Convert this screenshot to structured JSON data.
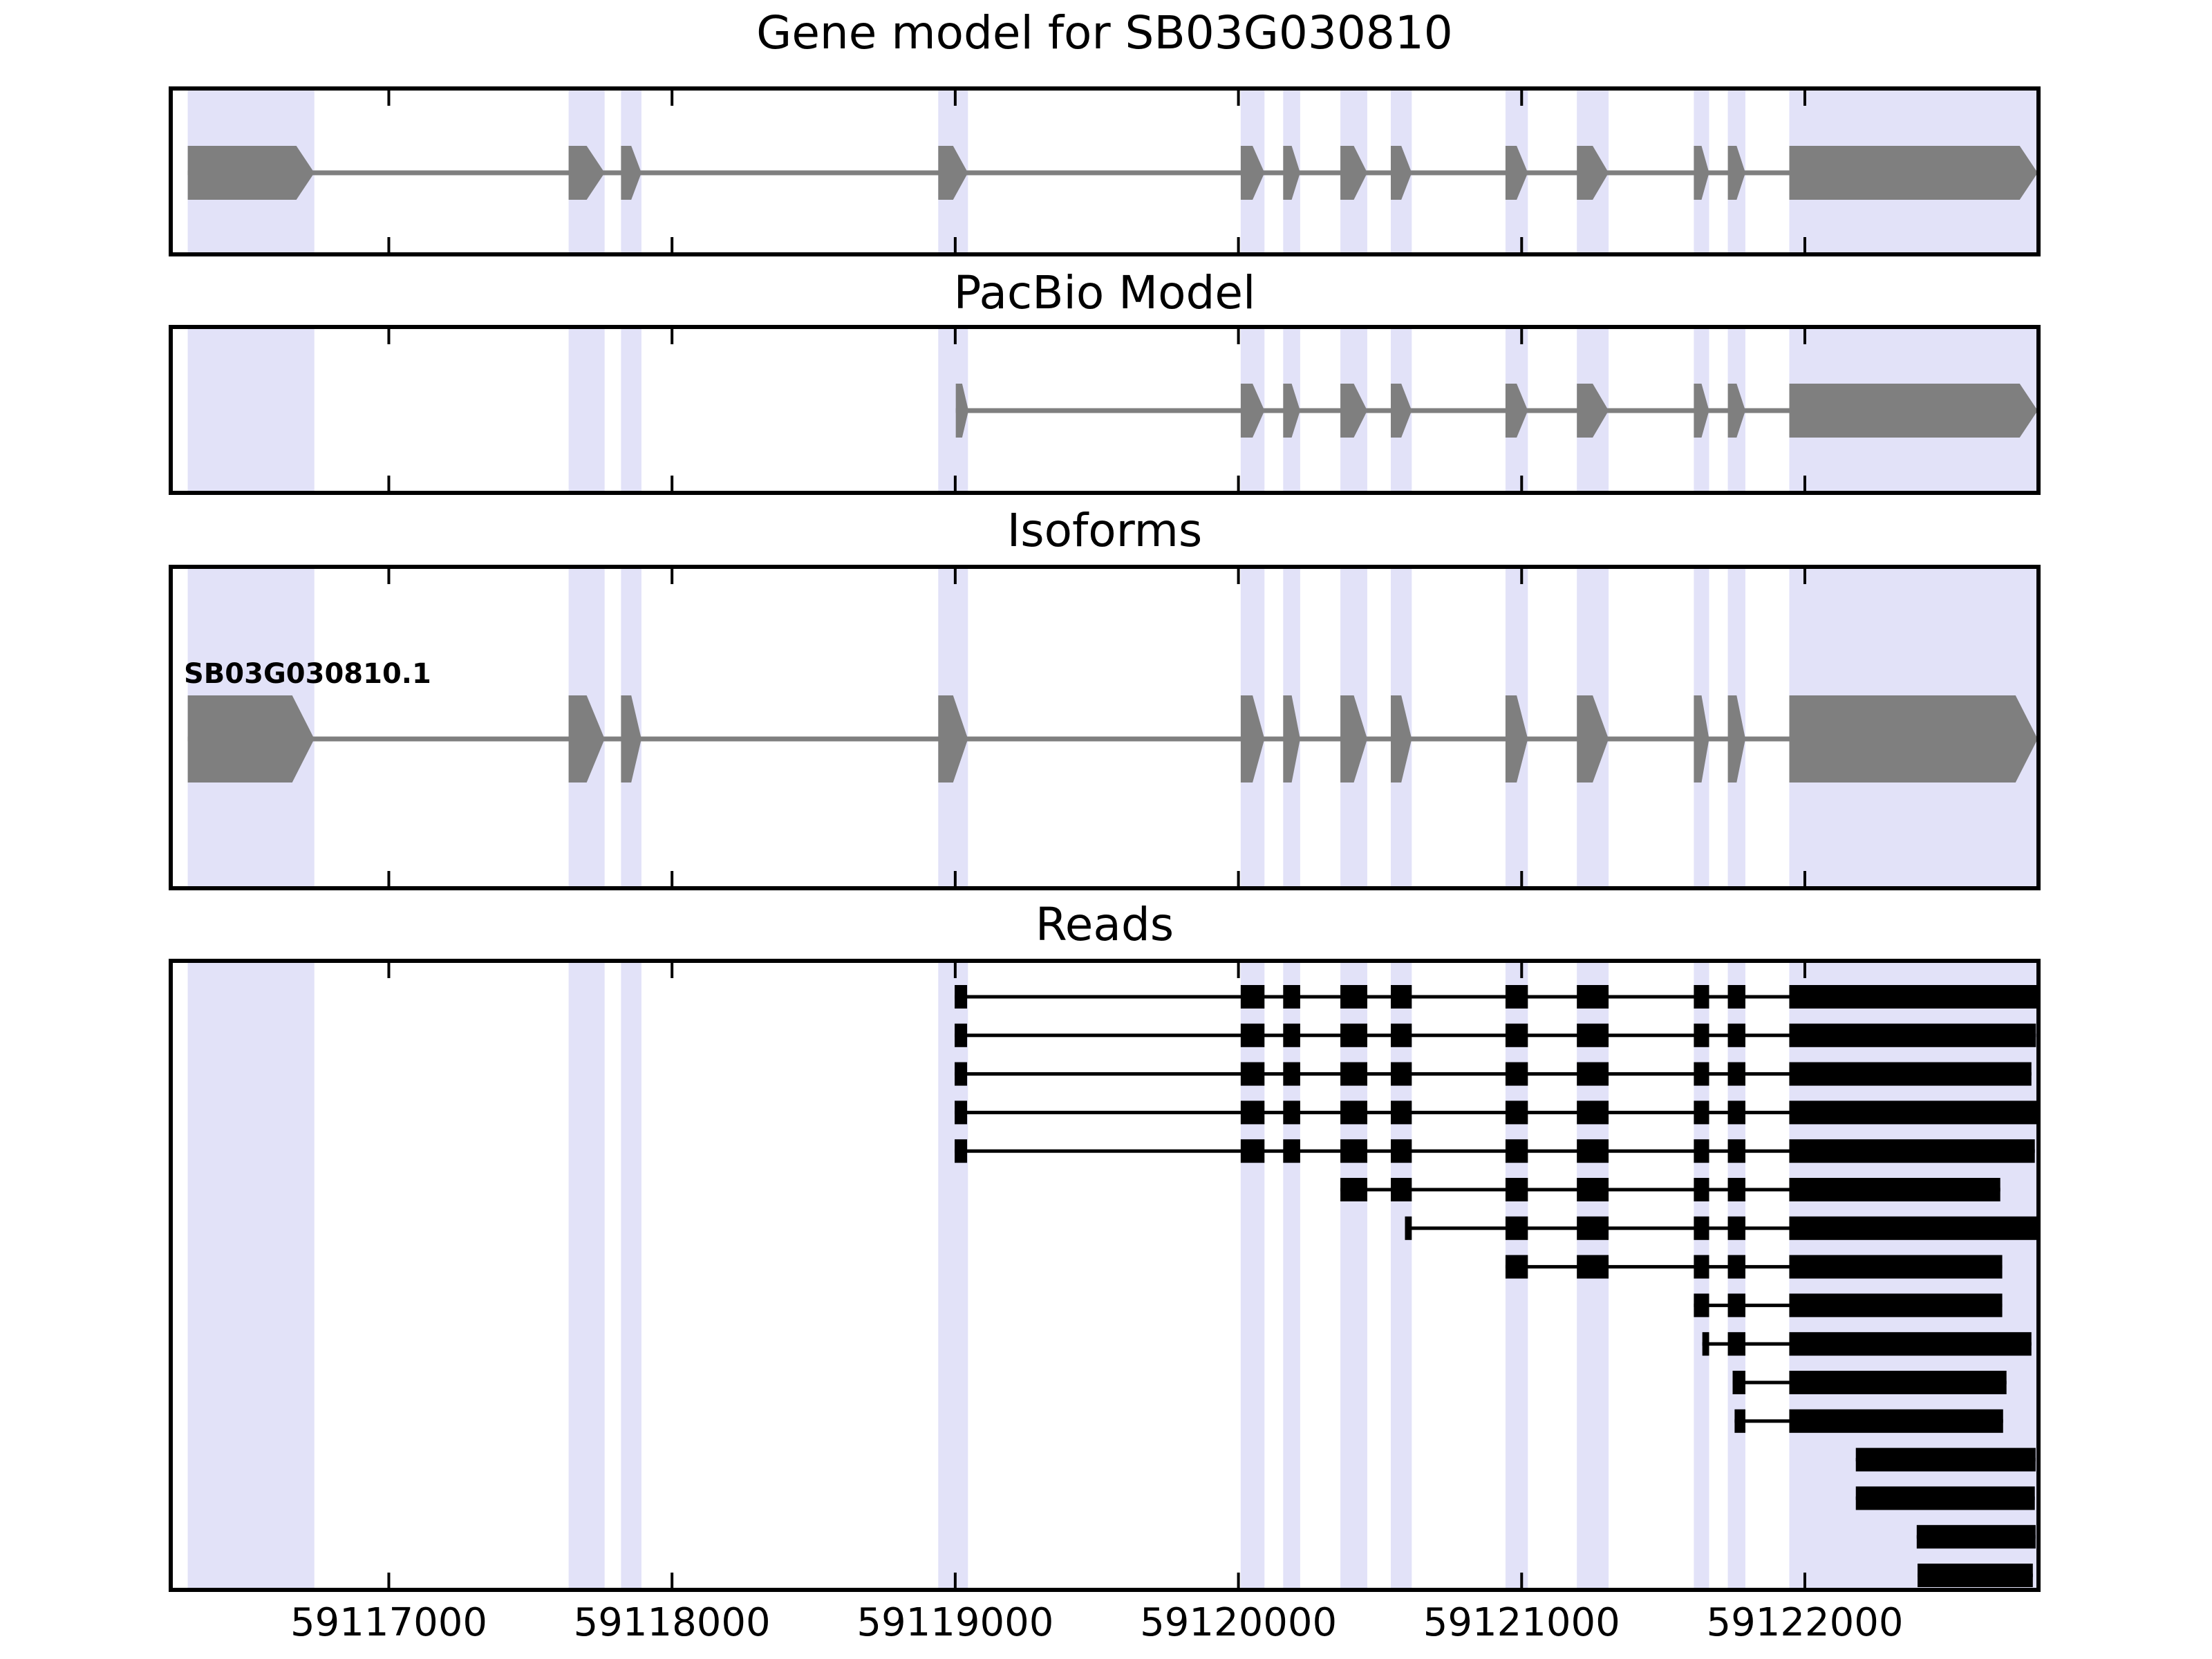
{
  "chart_data": {
    "type": "gene-model-plot",
    "gene_id": "SB03G030810",
    "xlim": [
      59116230,
      59122825
    ],
    "x_ticks": [
      59117000,
      59118000,
      59119000,
      59120000,
      59121000,
      59122000
    ],
    "x_tick_labels": [
      "59117000",
      "59118000",
      "59119000",
      "59120000",
      "59121000",
      "59122000"
    ],
    "panels": [
      {
        "id": "gene-model",
        "title": "Gene model for SB03G030810"
      },
      {
        "id": "pacbio",
        "title": "PacBio Model"
      },
      {
        "id": "isoforms",
        "title": "Isoforms"
      },
      {
        "id": "reads",
        "title": "Reads"
      }
    ],
    "gene_model_exons": [
      [
        59116290,
        59116737
      ],
      [
        59117635,
        59117762
      ],
      [
        59117820,
        59117892
      ],
      [
        59118940,
        59119045
      ],
      [
        59120008,
        59120092
      ],
      [
        59120158,
        59120218
      ],
      [
        59120360,
        59120455
      ],
      [
        59120538,
        59120612
      ],
      [
        59120943,
        59121022
      ],
      [
        59121195,
        59121307
      ],
      [
        59121608,
        59121662
      ],
      [
        59121728,
        59121790
      ],
      [
        59121945,
        59122822
      ]
    ],
    "pacbio_exons": [
      [
        59119002,
        59119047
      ],
      [
        59120008,
        59120092
      ],
      [
        59120158,
        59120218
      ],
      [
        59120360,
        59120455
      ],
      [
        59120538,
        59120612
      ],
      [
        59120943,
        59121022
      ],
      [
        59121195,
        59121307
      ],
      [
        59121608,
        59121662
      ],
      [
        59121728,
        59121790
      ],
      [
        59121945,
        59122822
      ]
    ],
    "isoforms": [
      {
        "label": "SB03G030810.1"
      }
    ],
    "reads": [
      {
        "blocks": [
          [
            59118998,
            59119042
          ],
          [
            59120008,
            59120092
          ],
          [
            59120158,
            59120218
          ],
          [
            59120360,
            59120455
          ],
          [
            59120538,
            59120612
          ],
          [
            59120943,
            59121022
          ],
          [
            59121195,
            59121307
          ],
          [
            59121608,
            59121662
          ],
          [
            59121728,
            59121790
          ],
          [
            59121945,
            59122820
          ]
        ]
      },
      {
        "blocks": [
          [
            59118998,
            59119042
          ],
          [
            59120008,
            59120092
          ],
          [
            59120158,
            59120218
          ],
          [
            59120360,
            59120455
          ],
          [
            59120538,
            59120612
          ],
          [
            59120943,
            59121022
          ],
          [
            59121195,
            59121307
          ],
          [
            59121608,
            59121662
          ],
          [
            59121728,
            59121790
          ],
          [
            59121945,
            59122816
          ]
        ]
      },
      {
        "blocks": [
          [
            59118998,
            59119042
          ],
          [
            59120008,
            59120092
          ],
          [
            59120158,
            59120218
          ],
          [
            59120360,
            59120455
          ],
          [
            59120538,
            59120612
          ],
          [
            59120943,
            59121022
          ],
          [
            59121195,
            59121307
          ],
          [
            59121608,
            59121662
          ],
          [
            59121728,
            59121790
          ],
          [
            59121945,
            59122800
          ]
        ]
      },
      {
        "blocks": [
          [
            59118998,
            59119042
          ],
          [
            59120008,
            59120092
          ],
          [
            59120158,
            59120218
          ],
          [
            59120360,
            59120455
          ],
          [
            59120538,
            59120612
          ],
          [
            59120943,
            59121022
          ],
          [
            59121195,
            59121307
          ],
          [
            59121608,
            59121662
          ],
          [
            59121728,
            59121790
          ],
          [
            59121945,
            59122818
          ]
        ]
      },
      {
        "blocks": [
          [
            59118998,
            59119042
          ],
          [
            59120008,
            59120092
          ],
          [
            59120158,
            59120218
          ],
          [
            59120360,
            59120455
          ],
          [
            59120538,
            59120612
          ],
          [
            59120943,
            59121022
          ],
          [
            59121195,
            59121307
          ],
          [
            59121608,
            59121662
          ],
          [
            59121728,
            59121790
          ],
          [
            59121945,
            59122812
          ]
        ]
      },
      {
        "blocks": [
          [
            59120360,
            59120455
          ],
          [
            59120538,
            59120612
          ],
          [
            59120943,
            59121022
          ],
          [
            59121195,
            59121307
          ],
          [
            59121608,
            59121662
          ],
          [
            59121728,
            59121790
          ],
          [
            59121945,
            59122690
          ]
        ]
      },
      {
        "blocks": [
          [
            59120588,
            59120612
          ],
          [
            59120943,
            59121022
          ],
          [
            59121195,
            59121307
          ],
          [
            59121608,
            59121662
          ],
          [
            59121728,
            59121790
          ],
          [
            59121945,
            59122825
          ]
        ]
      },
      {
        "blocks": [
          [
            59120943,
            59121022
          ],
          [
            59121195,
            59121307
          ],
          [
            59121608,
            59121662
          ],
          [
            59121728,
            59121790
          ],
          [
            59121945,
            59122697
          ]
        ]
      },
      {
        "blocks": [
          [
            59121608,
            59121662
          ],
          [
            59121728,
            59121790
          ],
          [
            59121945,
            59122697
          ]
        ]
      },
      {
        "blocks": [
          [
            59121638,
            59121662
          ],
          [
            59121728,
            59121790
          ],
          [
            59121945,
            59122800
          ]
        ]
      },
      {
        "blocks": [
          [
            59121745,
            59121790
          ],
          [
            59121945,
            59122712
          ]
        ]
      },
      {
        "blocks": [
          [
            59121752,
            59121790
          ],
          [
            59121945,
            59122700
          ]
        ]
      },
      {
        "blocks": [
          [
            59122180,
            59122815
          ]
        ]
      },
      {
        "blocks": [
          [
            59122180,
            59122812
          ]
        ]
      },
      {
        "blocks": [
          [
            59122395,
            59122815
          ]
        ]
      },
      {
        "blocks": [
          [
            59122398,
            59122805
          ]
        ]
      }
    ],
    "colors": {
      "exon": "#7f7f7f",
      "intron": "#7f7f7f",
      "highlight_band": "#e2e2f8",
      "read": "#000000",
      "border": "#000000",
      "text": "#000000",
      "background": "#ffffff"
    }
  }
}
